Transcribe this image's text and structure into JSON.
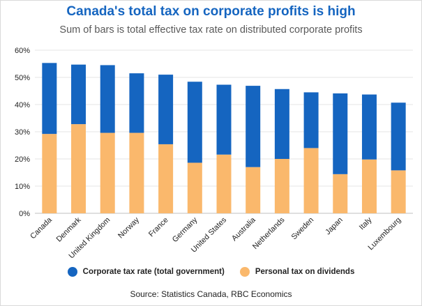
{
  "title": "Canada's total tax on corporate profits is high",
  "subtitle": "Sum of bars is total effective tax rate on distributed corporate profits",
  "source": "Source: Statistics Canada, RBC Economics",
  "colors": {
    "corporate": "#1565c0",
    "personal": "#fab86c",
    "grid": "#e6e6e6"
  },
  "chart_data": {
    "type": "bar",
    "stacked": true,
    "categories": [
      "Canada",
      "Denmark",
      "United Kingdom",
      "Norway",
      "France",
      "Germany",
      "United States",
      "Australia",
      "Netherlands",
      "Sweden",
      "Japan",
      "Italy",
      "Luxembourg"
    ],
    "series": [
      {
        "name": "Personal tax on dividends",
        "values": [
          29.2,
          32.8,
          29.6,
          29.6,
          25.4,
          18.6,
          21.6,
          17.0,
          20.0,
          24.0,
          14.4,
          19.8,
          15.8
        ]
      },
      {
        "name": "Corporate tax rate (total government)",
        "values": [
          26.1,
          21.9,
          24.9,
          21.9,
          25.6,
          29.8,
          25.7,
          29.9,
          25.7,
          20.5,
          29.7,
          23.9,
          24.9
        ]
      }
    ],
    "yticks": [
      "0%",
      "10%",
      "20%",
      "30%",
      "40%",
      "50%",
      "60%"
    ],
    "ylim": [
      0,
      60
    ],
    "legend": [
      "Corporate tax rate (total government)",
      "Personal tax on dividends"
    ],
    "legend_position": "bottom"
  }
}
